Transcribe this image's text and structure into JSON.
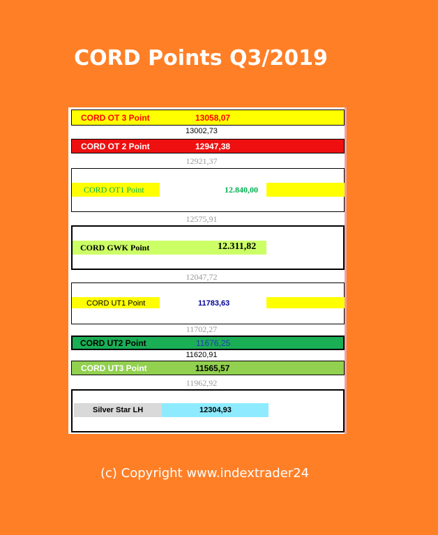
{
  "title": "CORD Points Q3/2019",
  "rows": {
    "ot3": {
      "label": "CORD OT 3 Point",
      "value": "13058,07",
      "bg": "#FFFF00",
      "label_color": "#FF0000",
      "value_color": "#FF0000"
    },
    "mid1": "13002,73",
    "ot2": {
      "label": "CORD OT 2 Point",
      "value": "12947,38",
      "bg": "#EE1010",
      "text_color": "#FFFFFF"
    },
    "mid2": "12921,37",
    "ot1": {
      "label": "CORD OT1 Point",
      "value": "12.840,00",
      "bg": "#FFFF00",
      "label_color": "#00B050",
      "value_color": "#00B050"
    },
    "mid3": "12575,91",
    "gwk": {
      "label": "CORD GWK Point",
      "value": "12.311,82",
      "bg": "#CCFF66"
    },
    "mid4": "12047,72",
    "ut1": {
      "label": "CORD UT1 Point",
      "value": "11783,63",
      "bg": "#FFFF00",
      "value_color": "#000099"
    },
    "mid5": "11702,27",
    "ut2": {
      "label": "CORD UT2 Point",
      "value": "11676,25",
      "bg": "#1AAE55",
      "value_color": "#1F3FA8"
    },
    "mid6": "11620,91",
    "ut3": {
      "label": "CORD UT3 Point",
      "value": "11565,57",
      "bg": "#92D050"
    },
    "mid7": "11962,92",
    "silver": {
      "label": "Silver Star LH",
      "value": "12304,93",
      "label_bg": "#D9D9D9",
      "value_bg": "#8EEBFF"
    }
  },
  "footer": "(c) Copyright www.indextrader24"
}
